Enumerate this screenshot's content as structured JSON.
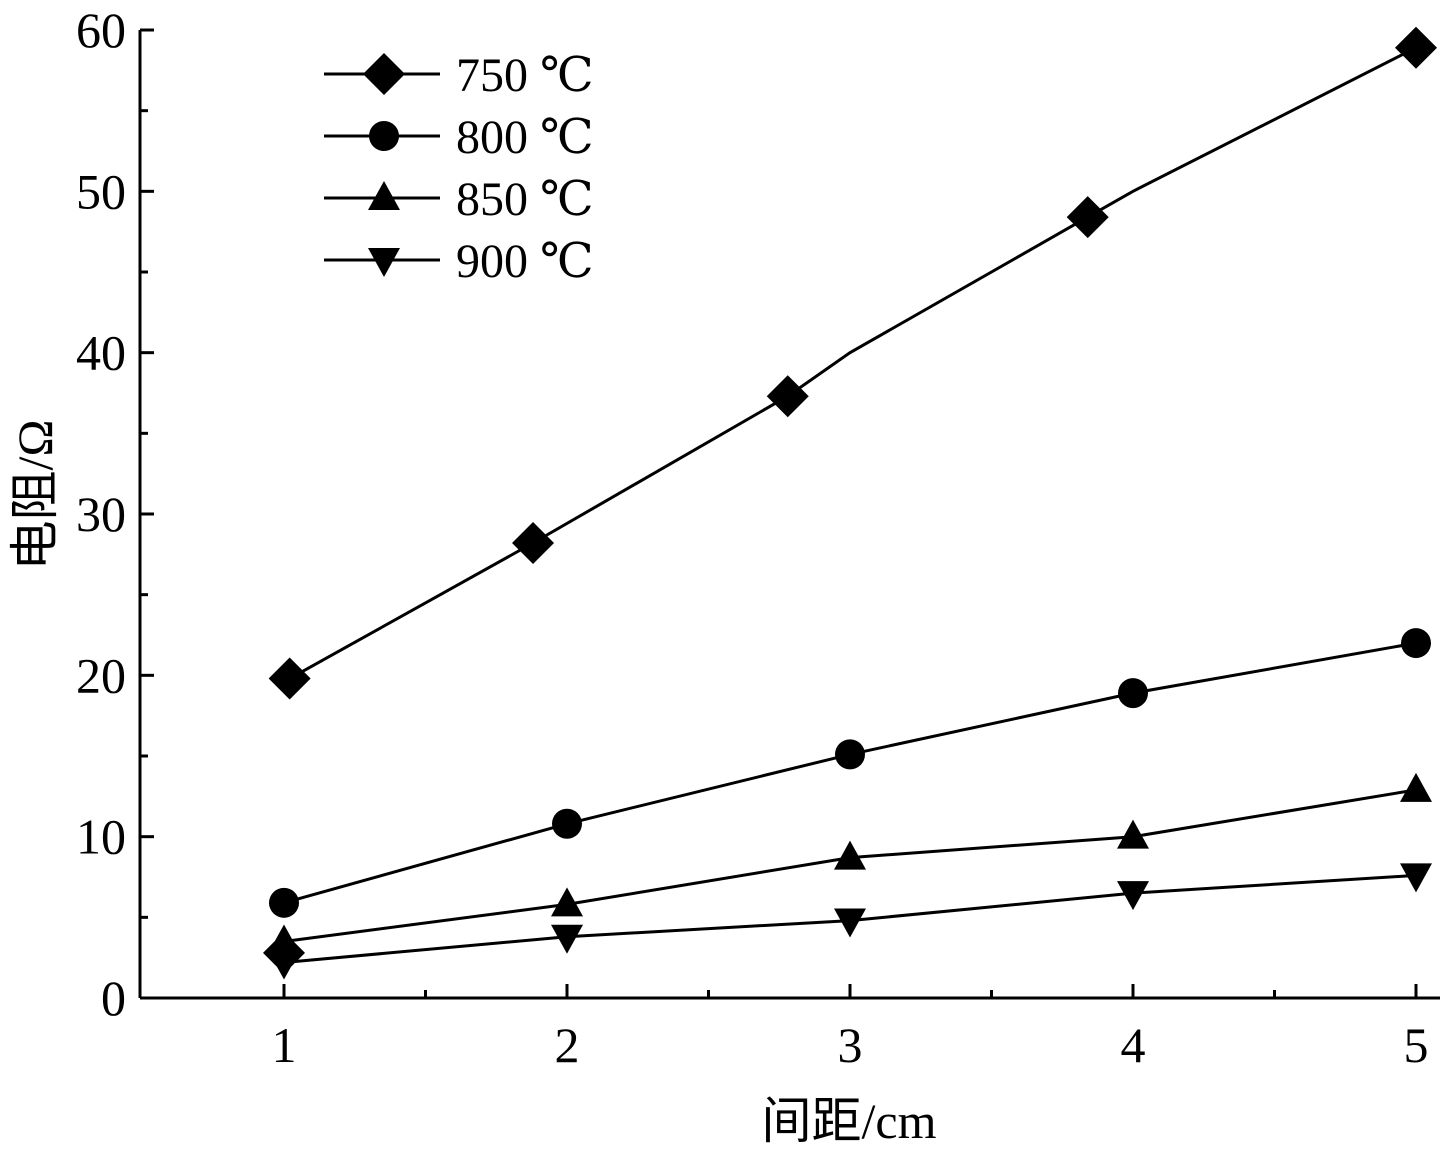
{
  "chart_data": {
    "type": "line",
    "xlabel": "间距/cm",
    "ylabel": "电阻/Ω",
    "xlim": [
      0.5,
      5.0
    ],
    "ylim": [
      0,
      60
    ],
    "x_ticks": [
      1,
      2,
      3,
      4,
      5
    ],
    "y_ticks": [
      0,
      10,
      20,
      30,
      40,
      50,
      60
    ],
    "x_tick_labels": [
      "1",
      "2",
      "3",
      "4",
      "5"
    ],
    "y_tick_labels": [
      "0",
      "10",
      "20",
      "30",
      "40",
      "50",
      "60"
    ],
    "legend_position": "top-left",
    "grid": false,
    "series": [
      {
        "name": "750 ℃",
        "marker": "diamond",
        "points": [
          [
            1.02,
            19.8
          ],
          [
            1.88,
            28.2
          ],
          [
            2.78,
            37.3
          ],
          [
            3.84,
            48.4
          ],
          [
            5.0,
            58.9
          ]
        ],
        "line": [
          [
            1.02,
            19.8
          ],
          [
            1.88,
            28.2
          ],
          [
            2.78,
            37.3
          ],
          [
            3.0,
            40.0
          ],
          [
            3.84,
            48.4
          ],
          [
            4.0,
            50.0
          ],
          [
            5.0,
            58.9
          ]
        ]
      },
      {
        "name": "800 ℃",
        "marker": "circle",
        "points": [
          [
            1.0,
            5.9
          ],
          [
            2.0,
            10.8
          ],
          [
            3.0,
            15.1
          ],
          [
            4.0,
            18.9
          ],
          [
            5.0,
            22.0
          ]
        ],
        "line": [
          [
            1.0,
            5.9
          ],
          [
            2.0,
            10.8
          ],
          [
            3.0,
            15.1
          ],
          [
            4.0,
            18.9
          ],
          [
            5.0,
            22.0
          ]
        ]
      },
      {
        "name": "850 ℃",
        "marker": "triangle-up",
        "points": [
          [
            1.0,
            3.5
          ],
          [
            2.0,
            5.8
          ],
          [
            3.0,
            8.7
          ],
          [
            4.0,
            10.0
          ],
          [
            5.0,
            12.9
          ]
        ],
        "line": [
          [
            1.0,
            3.5
          ],
          [
            2.0,
            5.8
          ],
          [
            3.0,
            8.7
          ],
          [
            4.0,
            10.0
          ],
          [
            5.0,
            12.9
          ]
        ]
      },
      {
        "name": "900 ℃",
        "marker": "triangle-down",
        "points": [
          [
            1.0,
            2.2
          ],
          [
            2.0,
            3.8
          ],
          [
            3.0,
            4.8
          ],
          [
            4.0,
            6.5
          ],
          [
            5.0,
            7.6
          ]
        ],
        "line": [
          [
            1.0,
            2.2
          ],
          [
            2.0,
            3.8
          ],
          [
            3.0,
            4.8
          ],
          [
            4.0,
            6.5
          ],
          [
            5.0,
            7.6
          ]
        ]
      }
    ],
    "extra_markers": [
      {
        "marker": "diamond",
        "point": [
          1.0,
          2.8
        ]
      }
    ]
  }
}
